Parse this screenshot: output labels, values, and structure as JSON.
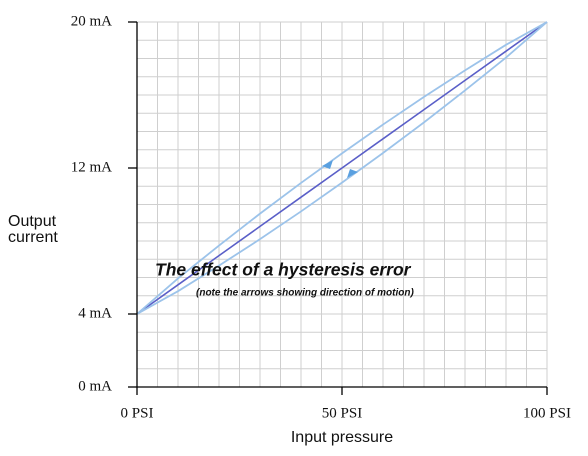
{
  "chart_data": {
    "type": "line",
    "xlabel": "Input pressure",
    "ylabel": "Output current",
    "annotations": [
      "The effect of a hysteresis error",
      "(note the arrows showing direction of motion)"
    ],
    "x": [
      0,
      10,
      20,
      30,
      40,
      50,
      60,
      70,
      80,
      90,
      100
    ],
    "series": [
      {
        "color": "#5a5fc8",
        "values": [
          4,
          5.6,
          7.2,
          8.8,
          10.4,
          12,
          13.6,
          15.2,
          16.8,
          18.4,
          20
        ]
      },
      {
        "color": "#9cc3ea",
        "values": [
          4,
          5.95,
          7.75,
          9.5,
          11.18,
          12.8,
          14.38,
          15.9,
          17.35,
          18.75,
          20
        ]
      },
      {
        "color": "#9cc3ea",
        "values": [
          4,
          5.25,
          6.65,
          8.1,
          9.62,
          11.2,
          12.82,
          14.5,
          16.25,
          18.05,
          20
        ]
      }
    ],
    "xlim": [
      0,
      100
    ],
    "ylim": [
      0,
      20
    ],
    "xticks": [
      {
        "value": 0,
        "label": "0 PSI"
      },
      {
        "value": 50,
        "label": "50 PSI"
      },
      {
        "value": 100,
        "label": "100 PSI"
      }
    ],
    "yticks": [
      {
        "value": 0,
        "label": "0 mA"
      },
      {
        "value": 4,
        "label": "4 mA"
      },
      {
        "value": 12,
        "label": "12 mA"
      },
      {
        "value": 20,
        "label": "20 mA"
      }
    ],
    "xgrid": [
      0,
      5,
      10,
      15,
      20,
      25,
      30,
      35,
      40,
      45,
      50,
      55,
      60,
      65,
      70,
      75,
      80,
      85,
      90,
      95,
      100
    ],
    "ygrid": [
      0,
      1,
      2,
      3,
      4,
      5,
      6,
      7,
      8,
      9,
      10,
      11,
      12,
      13,
      14,
      15,
      16,
      17,
      18,
      19,
      20
    ],
    "grid": true
  }
}
